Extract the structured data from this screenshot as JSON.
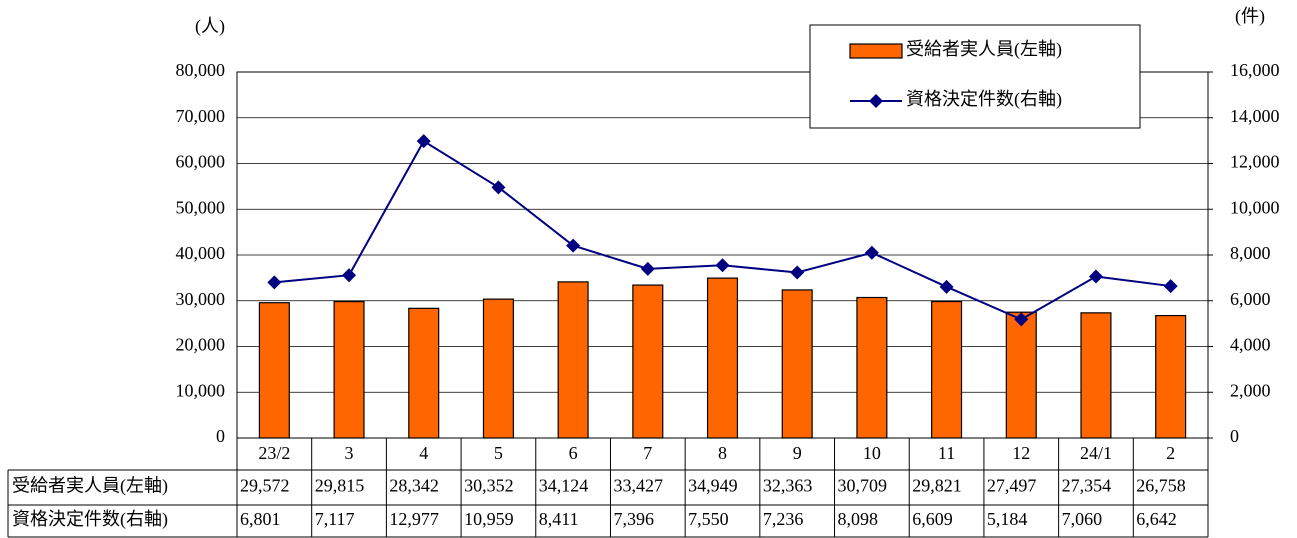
{
  "chart_data": {
    "type": "bar-line",
    "y_unit": "(人)",
    "y2_unit": "(件)",
    "categories": [
      "23/2",
      "3",
      "4",
      "5",
      "6",
      "7",
      "8",
      "9",
      "10",
      "11",
      "12",
      "24/1",
      "2"
    ],
    "series": [
      {
        "name": "受給者実人員(左軸)",
        "type": "bar",
        "color": "#ff6600",
        "values": [
          29572,
          29815,
          28342,
          30352,
          34124,
          33427,
          34949,
          32363,
          30709,
          29821,
          27497,
          27354,
          26758
        ],
        "value_labels": [
          "29,572",
          "29,815",
          "28,342",
          "30,352",
          "34,124",
          "33,427",
          "34,949",
          "32,363",
          "30,709",
          "29,821",
          "27,497",
          "27,354",
          "26,758"
        ]
      },
      {
        "name": "資格決定件数(右軸)",
        "type": "line",
        "axis": "y2",
        "color": "#000080",
        "values": [
          6801,
          7117,
          12977,
          10959,
          8411,
          7396,
          7550,
          7236,
          8098,
          6609,
          5184,
          7060,
          6642
        ],
        "value_labels": [
          "6,801",
          "7,117",
          "12,977",
          "10,959",
          "8,411",
          "7,396",
          "7,550",
          "7,236",
          "8,098",
          "6,609",
          "5,184",
          "7,060",
          "6,642"
        ]
      }
    ],
    "ylim": [
      0,
      80000
    ],
    "yticks": [
      0,
      {
        "value": 10000,
        "label": "10,000"
      },
      {
        "value": 20000,
        "label": "20,000"
      },
      {
        "value": 30000,
        "label": "30,000"
      },
      {
        "value": 40000,
        "label": "40,000"
      },
      {
        "value": 50000,
        "label": "50,000"
      },
      {
        "value": 60000,
        "label": "60,000"
      },
      {
        "value": 70000,
        "label": "70,000"
      },
      {
        "value": 80000,
        "label": "80,000"
      }
    ],
    "y2lim": [
      0,
      16000
    ],
    "y2ticks": [
      0,
      {
        "value": 2000,
        "label": "2,000"
      },
      {
        "value": 4000,
        "label": "4,000"
      },
      {
        "value": 6000,
        "label": "6,000"
      },
      {
        "value": 8000,
        "label": "8,000"
      },
      {
        "value": 10000,
        "label": "10,000"
      },
      {
        "value": 12000,
        "label": "12,000"
      },
      {
        "value": 14000,
        "label": "14,000"
      },
      {
        "value": 16000,
        "label": "16,000"
      }
    ],
    "grid": true
  }
}
